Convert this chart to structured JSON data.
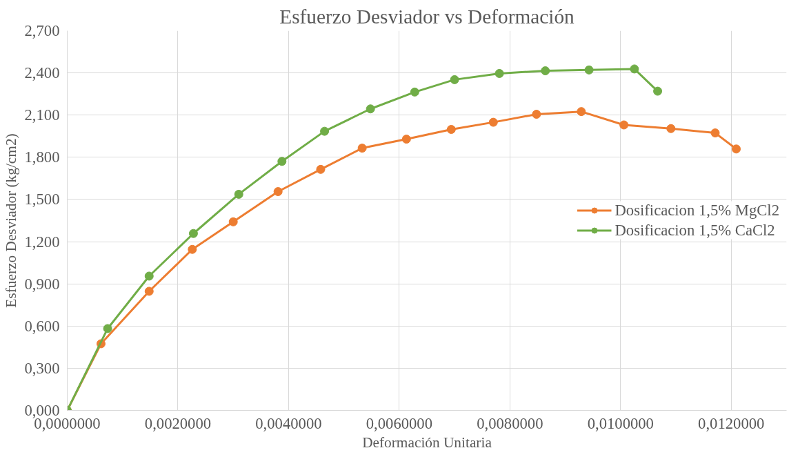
{
  "chart_data": {
    "type": "line",
    "title": "Esfuerzo Desviador vs Deformación",
    "xlabel": "Deformación Unitaria",
    "ylabel": "Esfuerzo Desviador (kg/cm2)",
    "xlim": [
      0,
      0.013
    ],
    "ylim": [
      0,
      2.7
    ],
    "xticks": [
      {
        "value": 0,
        "label": "0,0000000"
      },
      {
        "value": 0.002,
        "label": "0,0020000"
      },
      {
        "value": 0.004,
        "label": "0,0040000"
      },
      {
        "value": 0.006,
        "label": "0,0060000"
      },
      {
        "value": 0.008,
        "label": "0,0080000"
      },
      {
        "value": 0.01,
        "label": "0,0100000"
      },
      {
        "value": 0.012,
        "label": "0,0120000"
      }
    ],
    "yticks": [
      {
        "value": 0,
        "label": "0,000"
      },
      {
        "value": 0.3,
        "label": "0,300"
      },
      {
        "value": 0.6,
        "label": "0,600"
      },
      {
        "value": 0.9,
        "label": "0,900"
      },
      {
        "value": 1.2,
        "label": "1,200"
      },
      {
        "value": 1.5,
        "label": "1,500"
      },
      {
        "value": 1.8,
        "label": "1,800"
      },
      {
        "value": 2.1,
        "label": "2,100"
      },
      {
        "value": 2.4,
        "label": "2,400"
      },
      {
        "value": 2.7,
        "label": "2,700"
      }
    ],
    "grid": true,
    "legend": "right",
    "marker": "circle",
    "line_style": "solid",
    "series": [
      {
        "name": "Dosificacion 1,5% MgCl2",
        "color": "#ed7d31",
        "x": [
          0,
          0.00061,
          0.00148,
          0.00226,
          0.003,
          0.00381,
          0.00458,
          0.00533,
          0.00613,
          0.00694,
          0.0077,
          0.00848,
          0.00929,
          0.01006,
          0.01091,
          0.01171,
          0.01209
        ],
        "values": [
          0,
          0.474,
          0.847,
          1.145,
          1.341,
          1.556,
          1.714,
          1.865,
          1.929,
          1.998,
          2.049,
          2.106,
          2.125,
          2.03,
          2.004,
          1.973,
          1.859
        ]
      },
      {
        "name": "Dosificacion 1,5% CaCl2",
        "color": "#70ad47",
        "x": [
          0,
          0.00073,
          0.00148,
          0.00228,
          0.0031,
          0.00388,
          0.00465,
          0.00548,
          0.00628,
          0.007,
          0.00781,
          0.00864,
          0.00943,
          0.01025,
          0.01067
        ],
        "values": [
          0,
          0.582,
          0.955,
          1.258,
          1.537,
          1.771,
          1.985,
          2.144,
          2.264,
          2.352,
          2.396,
          2.415,
          2.421,
          2.428,
          2.27
        ]
      }
    ]
  }
}
